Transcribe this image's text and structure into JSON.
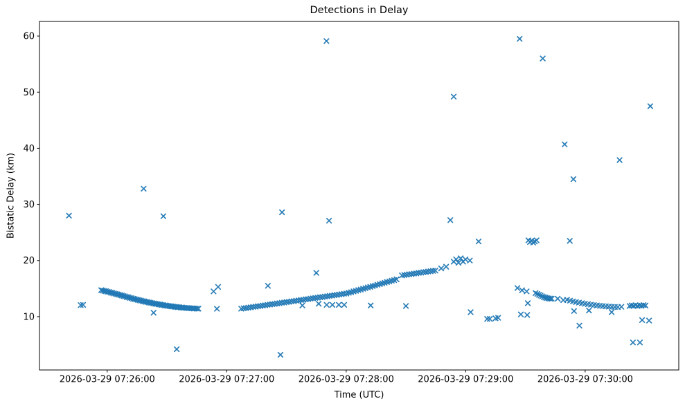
{
  "title": "Detections in Delay",
  "xlabel": "Time (UTC)",
  "ylabel": "Bistatic Delay (km)",
  "chart_data": {
    "type": "scatter",
    "marker": "x",
    "marker_color": "#1f77b4",
    "axes_color": "#000000",
    "background": "#ffffff",
    "grid": false,
    "legend": null,
    "title": "Detections in Delay",
    "xlabel": "Time (UTC)",
    "ylabel": "Bistatic Delay (km)",
    "x_unit": "seconds after 2026-03-29 07:26:00",
    "xlim": [
      -34,
      287
    ],
    "ylim": [
      0.5,
      62.6
    ],
    "x_ticks": [
      {
        "t": 0,
        "label": "2026-03-29 07:26:00"
      },
      {
        "t": 60,
        "label": "2026-03-29 07:27:00"
      },
      {
        "t": 120,
        "label": "2026-03-29 07:28:00"
      },
      {
        "t": 180,
        "label": "2026-03-29 07:29:00"
      },
      {
        "t": 240,
        "label": "2026-03-29 07:30:00"
      }
    ],
    "y_ticks": [
      10,
      20,
      30,
      40,
      50,
      60
    ],
    "points": [
      [
        -19.2,
        28.0
      ],
      [
        -13.3,
        12.05
      ],
      [
        -12.1,
        12.1
      ],
      [
        -3.0,
        14.72
      ],
      [
        -2.2,
        14.66
      ],
      [
        -1.4,
        14.57
      ],
      [
        -0.6,
        14.53
      ],
      [
        0.2,
        14.44
      ],
      [
        1.0,
        14.39
      ],
      [
        1.8,
        14.29
      ],
      [
        2.6,
        14.23
      ],
      [
        3.4,
        14.14
      ],
      [
        4.2,
        14.08
      ],
      [
        5.0,
        13.99
      ],
      [
        5.8,
        13.93
      ],
      [
        6.6,
        13.83
      ],
      [
        7.4,
        13.77
      ],
      [
        8.2,
        13.67
      ],
      [
        9.0,
        13.61
      ],
      [
        9.8,
        13.51
      ],
      [
        10.6,
        13.45
      ],
      [
        11.4,
        13.35
      ],
      [
        12.2,
        13.29
      ],
      [
        13.0,
        13.19
      ],
      [
        13.8,
        13.14
      ],
      [
        14.6,
        13.05
      ],
      [
        15.4,
        13.0
      ],
      [
        16.2,
        12.91
      ],
      [
        17.0,
        12.86
      ],
      [
        17.8,
        12.77
      ],
      [
        18.6,
        12.72
      ],
      [
        19.4,
        12.64
      ],
      [
        20.2,
        12.6
      ],
      [
        21.0,
        12.52
      ],
      [
        21.8,
        12.48
      ],
      [
        22.6,
        12.4
      ],
      [
        23.4,
        12.36
      ],
      [
        24.2,
        12.29
      ],
      [
        25.0,
        12.26
      ],
      [
        25.8,
        12.19
      ],
      [
        26.6,
        12.16
      ],
      [
        27.4,
        12.09
      ],
      [
        28.2,
        12.06
      ],
      [
        29.0,
        11.99
      ],
      [
        29.8,
        11.97
      ],
      [
        30.6,
        11.91
      ],
      [
        31.4,
        11.89
      ],
      [
        32.2,
        11.83
      ],
      [
        33.0,
        11.81
      ],
      [
        33.8,
        11.75
      ],
      [
        34.6,
        11.74
      ],
      [
        35.4,
        11.69
      ],
      [
        36.2,
        11.68
      ],
      [
        37.0,
        11.63
      ],
      [
        37.8,
        11.62
      ],
      [
        38.6,
        11.57
      ],
      [
        39.4,
        11.57
      ],
      [
        40.2,
        11.53
      ],
      [
        41.0,
        11.53
      ],
      [
        41.8,
        11.49
      ],
      [
        42.6,
        11.49
      ],
      [
        43.4,
        11.45
      ],
      [
        44.2,
        11.46
      ],
      [
        45.0,
        11.42
      ],
      [
        45.8,
        11.43
      ],
      [
        18.3,
        32.8
      ],
      [
        23.3,
        10.7
      ],
      [
        28.2,
        27.9
      ],
      [
        34.9,
        4.2
      ],
      [
        53.4,
        14.5
      ],
      [
        55.7,
        15.3
      ],
      [
        55.1,
        11.4
      ],
      [
        67.3,
        11.42
      ],
      [
        68.5,
        11.49
      ],
      [
        69.7,
        11.53
      ],
      [
        70.9,
        11.61
      ],
      [
        72.1,
        11.66
      ],
      [
        73.3,
        11.74
      ],
      [
        74.5,
        11.78
      ],
      [
        75.7,
        11.86
      ],
      [
        76.9,
        11.9
      ],
      [
        78.1,
        11.98
      ],
      [
        79.3,
        12.03
      ],
      [
        80.5,
        12.11
      ],
      [
        81.7,
        12.15
      ],
      [
        82.9,
        12.23
      ],
      [
        84.1,
        12.27
      ],
      [
        85.3,
        12.35
      ],
      [
        86.5,
        12.39
      ],
      [
        87.7,
        12.48
      ],
      [
        88.9,
        12.52
      ],
      [
        90.1,
        12.6
      ],
      [
        91.3,
        12.64
      ],
      [
        92.5,
        12.72
      ],
      [
        93.7,
        12.76
      ],
      [
        94.9,
        12.85
      ],
      [
        96.1,
        12.89
      ],
      [
        97.3,
        12.97
      ],
      [
        98.5,
        13.01
      ],
      [
        99.7,
        13.09
      ],
      [
        100.9,
        13.13
      ],
      [
        102.1,
        13.22
      ],
      [
        103.3,
        13.26
      ],
      [
        104.5,
        13.34
      ],
      [
        105.7,
        13.38
      ],
      [
        106.9,
        13.46
      ],
      [
        108.1,
        13.5
      ],
      [
        109.3,
        13.58
      ],
      [
        110.5,
        13.63
      ],
      [
        111.7,
        13.71
      ],
      [
        112.9,
        13.75
      ],
      [
        114.1,
        13.83
      ],
      [
        115.3,
        13.87
      ],
      [
        116.5,
        13.95
      ],
      [
        117.7,
        14.0
      ],
      [
        118.9,
        14.08
      ],
      [
        120.1,
        14.12
      ],
      [
        121.3,
        14.25
      ],
      [
        122.5,
        14.35
      ],
      [
        123.7,
        14.49
      ],
      [
        124.9,
        14.59
      ],
      [
        126.1,
        14.73
      ],
      [
        127.3,
        14.83
      ],
      [
        128.5,
        14.97
      ],
      [
        129.7,
        15.07
      ],
      [
        130.9,
        15.21
      ],
      [
        132.1,
        15.31
      ],
      [
        133.3,
        15.45
      ],
      [
        134.5,
        15.55
      ],
      [
        135.7,
        15.69
      ],
      [
        136.9,
        15.79
      ],
      [
        138.1,
        15.93
      ],
      [
        139.3,
        16.03
      ],
      [
        140.5,
        16.17
      ],
      [
        141.7,
        16.27
      ],
      [
        142.9,
        16.41
      ],
      [
        144.1,
        16.51
      ],
      [
        145.3,
        16.65
      ],
      [
        148.0,
        17.35
      ],
      [
        149.2,
        17.42
      ],
      [
        150.4,
        17.47
      ],
      [
        151.6,
        17.55
      ],
      [
        152.8,
        17.59
      ],
      [
        154.0,
        17.67
      ],
      [
        155.2,
        17.71
      ],
      [
        156.4,
        17.8
      ],
      [
        157.6,
        17.84
      ],
      [
        158.8,
        17.92
      ],
      [
        160.0,
        17.96
      ],
      [
        161.2,
        18.05
      ],
      [
        162.4,
        18.09
      ],
      [
        163.6,
        18.17
      ],
      [
        164.8,
        18.21
      ],
      [
        98.0,
        12.0
      ],
      [
        106.2,
        12.3
      ],
      [
        110.2,
        12.1
      ],
      [
        113.1,
        12.1
      ],
      [
        116.3,
        12.1
      ],
      [
        119.0,
        12.1
      ],
      [
        132.3,
        12.0
      ],
      [
        150.0,
        11.9
      ],
      [
        80.7,
        15.5
      ],
      [
        105.0,
        17.8
      ],
      [
        87.0,
        3.2
      ],
      [
        87.8,
        28.6
      ],
      [
        110.1,
        59.1
      ],
      [
        111.4,
        27.1
      ],
      [
        167.7,
        18.6
      ],
      [
        170.2,
        18.9
      ],
      [
        172.3,
        27.2
      ],
      [
        174.0,
        49.2
      ],
      [
        174.0,
        19.8
      ],
      [
        175.2,
        20.2
      ],
      [
        176.4,
        19.6
      ],
      [
        177.5,
        20.4
      ],
      [
        178.7,
        19.8
      ],
      [
        179.9,
        20.2
      ],
      [
        182.1,
        20.0
      ],
      [
        182.5,
        10.8
      ],
      [
        186.5,
        23.4
      ],
      [
        190.8,
        9.6
      ],
      [
        192.1,
        9.6
      ],
      [
        195.0,
        9.7
      ],
      [
        196.3,
        9.8
      ],
      [
        206.0,
        15.1
      ],
      [
        207.1,
        59.5
      ],
      [
        207.7,
        10.4
      ],
      [
        208.3,
        14.7
      ],
      [
        210.6,
        14.5
      ],
      [
        210.9,
        10.3
      ],
      [
        211.2,
        12.4
      ],
      [
        211.5,
        23.6
      ],
      [
        212.3,
        23.3
      ],
      [
        213.1,
        23.5
      ],
      [
        213.9,
        23.2
      ],
      [
        214.7,
        23.4
      ],
      [
        215.6,
        23.6
      ],
      [
        218.7,
        56.0
      ],
      [
        215.1,
        14.2
      ],
      [
        216.0,
        14.05
      ],
      [
        216.8,
        13.9
      ],
      [
        217.6,
        13.76
      ],
      [
        218.4,
        13.62
      ],
      [
        219.2,
        13.5
      ],
      [
        220.0,
        13.4
      ],
      [
        220.8,
        13.32
      ],
      [
        221.6,
        13.26
      ],
      [
        222.4,
        13.22
      ],
      [
        223.2,
        13.2
      ],
      [
        226.2,
        13.2
      ],
      [
        229.0,
        12.95
      ],
      [
        230.9,
        13.0
      ],
      [
        232.4,
        12.85
      ],
      [
        233.9,
        12.72
      ],
      [
        235.4,
        12.6
      ],
      [
        236.9,
        12.5
      ],
      [
        238.4,
        12.4
      ],
      [
        239.9,
        12.3
      ],
      [
        241.4,
        12.22
      ],
      [
        242.9,
        12.14
      ],
      [
        244.4,
        12.07
      ],
      [
        245.9,
        12.0
      ],
      [
        247.4,
        11.94
      ],
      [
        248.9,
        11.89
      ],
      [
        250.4,
        11.84
      ],
      [
        251.9,
        11.8
      ],
      [
        253.4,
        11.76
      ],
      [
        254.9,
        11.73
      ],
      [
        256.4,
        11.71
      ],
      [
        258.2,
        11.76
      ],
      [
        262.3,
        11.9
      ],
      [
        263.3,
        12.0
      ],
      [
        264.3,
        11.92
      ],
      [
        265.3,
        12.04
      ],
      [
        266.3,
        11.9
      ],
      [
        267.3,
        12.0
      ],
      [
        268.3,
        11.95
      ],
      [
        269.3,
        12.05
      ],
      [
        270.3,
        11.98
      ],
      [
        229.7,
        40.7
      ],
      [
        232.3,
        23.5
      ],
      [
        234.1,
        34.5
      ],
      [
        234.4,
        11.0
      ],
      [
        237.1,
        8.4
      ],
      [
        241.9,
        11.1
      ],
      [
        253.3,
        10.8
      ],
      [
        257.3,
        37.9
      ],
      [
        264.0,
        5.4
      ],
      [
        267.5,
        5.4
      ],
      [
        268.6,
        9.4
      ],
      [
        272.1,
        9.3
      ],
      [
        272.7,
        47.5
      ]
    ]
  }
}
